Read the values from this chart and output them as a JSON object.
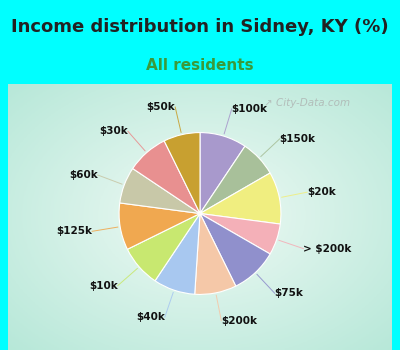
{
  "title": "Income distribution in Sidney, KY (%)",
  "subtitle": "All residents",
  "title_fontsize": 13,
  "subtitle_fontsize": 11,
  "title_color": "#222222",
  "subtitle_color": "#3a9a3a",
  "bg_cyan": "#00FFFF",
  "bg_chart_outer": "#b2e8d8",
  "bg_chart_inner": "#f0faf5",
  "watermark": "City-Data.com",
  "labels": [
    "$100k",
    "$150k",
    "$20k",
    "> $200k",
    "$75k",
    "$200k",
    "$40k",
    "$10k",
    "$125k",
    "$60k",
    "$30k",
    "$50k"
  ],
  "sizes": [
    9,
    7,
    10,
    6,
    9,
    8,
    8,
    8,
    9,
    7,
    8,
    7
  ],
  "colors": [
    "#a899cc",
    "#a8c09a",
    "#f0ee80",
    "#f4b0b8",
    "#9090cc",
    "#f5c8a8",
    "#a8c8f0",
    "#c8e870",
    "#f0a850",
    "#c8c8a8",
    "#e89090",
    "#c8a030"
  ],
  "label_fontsize": 7.5,
  "start_angle": 90,
  "label_line_color_match": true
}
